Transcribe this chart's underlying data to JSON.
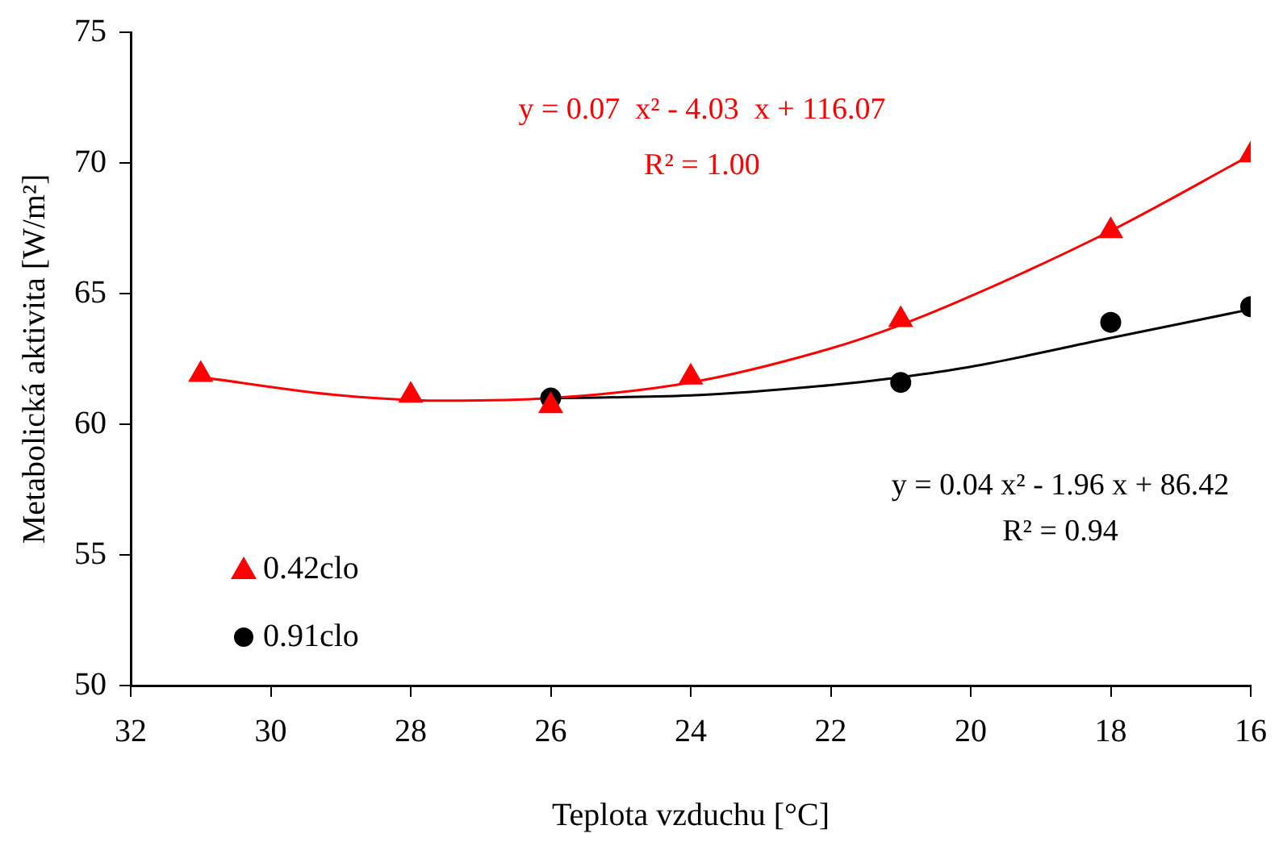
{
  "chart_data": {
    "type": "scatter",
    "xlabel": "Teplota vzduchu [°C]",
    "ylabel": "Metabolická aktivita [W/m²]",
    "xlim": [
      32,
      16
    ],
    "xticks": [
      32,
      30,
      28,
      26,
      24,
      22,
      20,
      18,
      16
    ],
    "ylim": [
      50,
      75
    ],
    "yticks": [
      50,
      55,
      60,
      65,
      70,
      75
    ],
    "grid": false,
    "legend": "bottom left",
    "series": [
      {
        "name": "0.42clo",
        "color": "#ff0000",
        "marker": "triangle",
        "x": [
          31,
          28,
          26,
          24,
          21,
          18,
          16
        ],
        "values": [
          61.9,
          61.1,
          60.7,
          61.8,
          64.0,
          67.4,
          70.3
        ]
      },
      {
        "name": "0.91clo",
        "color": "#000000",
        "marker": "circle",
        "x": [
          26,
          21,
          18,
          16
        ],
        "values": [
          61.0,
          61.6,
          63.9,
          64.5
        ]
      },
      {
        "type": "line",
        "color": "#ff0000",
        "marker": "none",
        "x": [
          31,
          29,
          27.5,
          26,
          24,
          22,
          21,
          20,
          18,
          16
        ],
        "values": [
          61.8,
          61.1,
          60.9,
          61.0,
          61.6,
          62.9,
          63.8,
          64.9,
          67.4,
          70.3
        ]
      },
      {
        "type": "line",
        "color": "#000000",
        "marker": "none",
        "x": [
          26,
          24,
          22,
          21,
          20,
          18,
          16
        ],
        "values": [
          61.0,
          61.1,
          61.5,
          61.8,
          62.2,
          63.3,
          64.4
        ]
      }
    ],
    "annotations": [
      "y = 0.07  x² - 4.03  x + 116.07",
      "R² = 1.00",
      "y = 0.04 x² - 1.96 x + 86.42",
      "R² = 0.94"
    ]
  }
}
